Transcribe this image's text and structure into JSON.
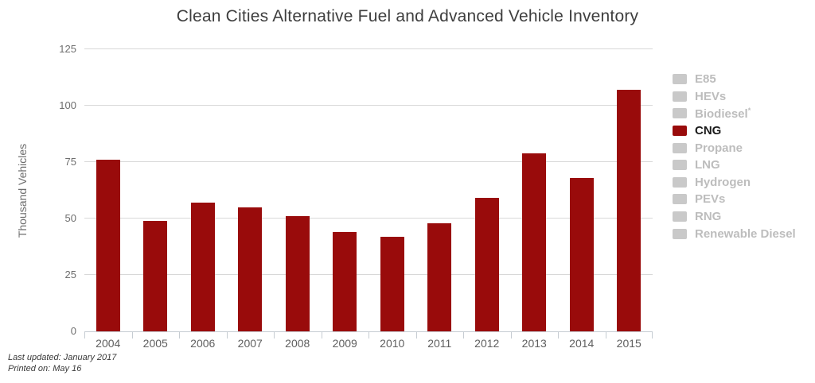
{
  "title": "Clean Cities Alternative Fuel and Advanced Vehicle Inventory",
  "footer": {
    "last_updated": "Last updated: January 2017",
    "printed_on": "Printed on: May 16"
  },
  "colors": {
    "bar": "#990b0b",
    "legend_inactive_swatch": "#c9c9c9",
    "legend_inactive_text": "#bdbdbd",
    "legend_active_text": "#1a1a1a",
    "grid": "#d8d8d8",
    "axis": "#c6ccd2"
  },
  "legend": {
    "items": [
      {
        "label": "E85",
        "active": false
      },
      {
        "label": "HEVs",
        "active": false
      },
      {
        "label": "Biodiesel",
        "sup": "*",
        "active": false
      },
      {
        "label": "CNG",
        "active": true
      },
      {
        "label": "Propane",
        "active": false
      },
      {
        "label": "LNG",
        "active": false
      },
      {
        "label": "Hydrogen",
        "active": false
      },
      {
        "label": "PEVs",
        "active": false
      },
      {
        "label": "RNG",
        "active": false
      },
      {
        "label": "Renewable Diesel",
        "active": false
      }
    ]
  },
  "chart_data": {
    "type": "bar",
    "title": "Clean Cities Alternative Fuel and Advanced Vehicle Inventory",
    "categories": [
      "2004",
      "2005",
      "2006",
      "2007",
      "2008",
      "2009",
      "2010",
      "2011",
      "2012",
      "2013",
      "2014",
      "2015"
    ],
    "series": [
      {
        "name": "CNG",
        "values": [
          76,
          49,
          57,
          55,
          51,
          44,
          42,
          48,
          59,
          79,
          68,
          107
        ]
      }
    ],
    "xlabel": "",
    "ylabel": "Thousand Vehicles",
    "ylim": [
      0,
      125
    ],
    "yticks": [
      0,
      25,
      50,
      75,
      100,
      125
    ],
    "grid": true,
    "legend_position": "right",
    "legend_entries": [
      "E85",
      "HEVs",
      "Biodiesel*",
      "CNG",
      "Propane",
      "LNG",
      "Hydrogen",
      "PEVs",
      "RNG",
      "Renewable Diesel"
    ],
    "active_series": "CNG"
  }
}
